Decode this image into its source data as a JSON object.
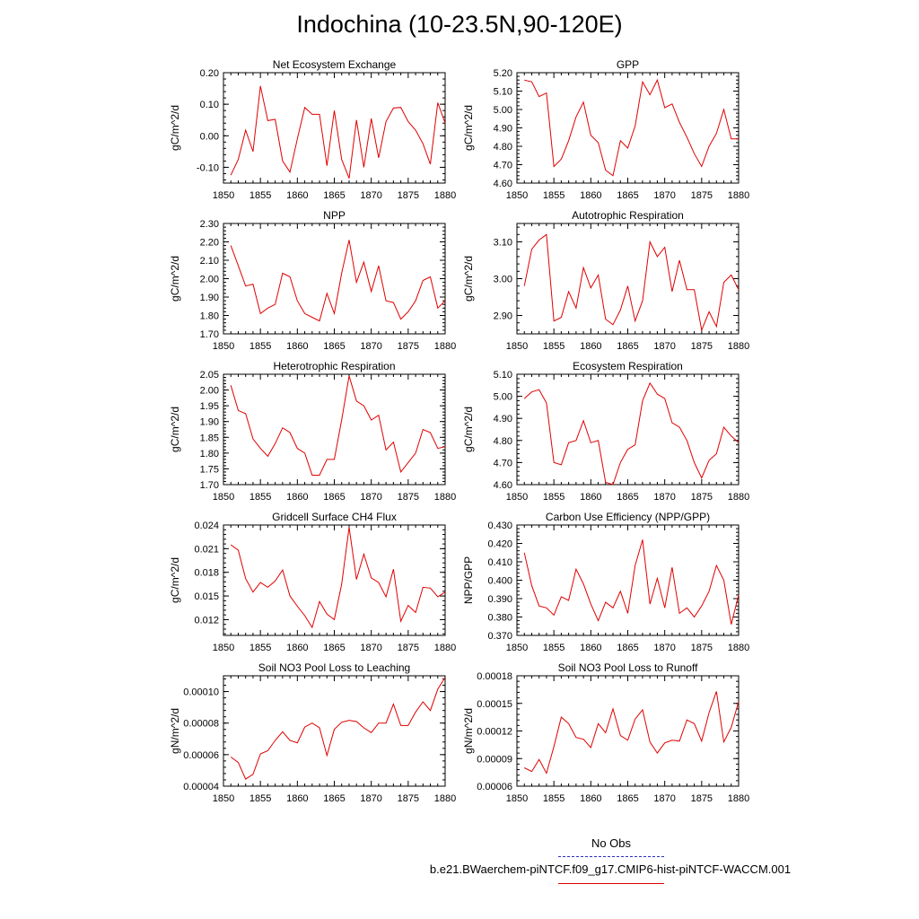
{
  "title": "Indochina (10-23.5N,90-120E)",
  "legend": {
    "obs_label": "No Obs",
    "obs_color": "#2c2cc0",
    "run_label": "b.e21.BWaerchem-piNTCF.f09_g17.CMIP6-hist-piNTCF-WACCM.001",
    "run_color": "#e00000"
  },
  "chart_data": [
    {
      "type": "line",
      "title": "Net Ecosystem Exchange",
      "ylabel": "gC/m^2/d",
      "xlim": [
        1850,
        1880
      ],
      "ylim": [
        -0.15,
        0.2
      ],
      "yticks": [
        "0.20",
        "0.10",
        "0.00",
        "-0.10"
      ],
      "ytick_values": [
        0.2,
        0.1,
        0.0,
        -0.1
      ],
      "xticks": [
        "1850",
        "1855",
        "1860",
        "1865",
        "1870",
        "1875",
        "1880"
      ],
      "x": [
        1851,
        1852,
        1853,
        1854,
        1855,
        1856,
        1857,
        1858,
        1859,
        1860,
        1861,
        1862,
        1863,
        1864,
        1865,
        1866,
        1867,
        1868,
        1869,
        1870,
        1871,
        1872,
        1873,
        1874,
        1875,
        1876,
        1877,
        1878,
        1879,
        1880
      ],
      "values": [
        -0.125,
        -0.075,
        0.018,
        -0.05,
        0.158,
        0.048,
        0.052,
        -0.08,
        -0.115,
        -0.01,
        0.09,
        0.068,
        0.068,
        -0.095,
        0.08,
        -0.075,
        -0.135,
        0.05,
        -0.1,
        0.055,
        -0.07,
        0.045,
        0.088,
        0.09,
        0.045,
        0.018,
        -0.025,
        -0.09,
        0.105,
        0.04
      ]
    },
    {
      "type": "line",
      "title": "GPP",
      "ylabel": "gC/m^2/d",
      "xlim": [
        1850,
        1880
      ],
      "ylim": [
        4.6,
        5.2
      ],
      "yticks": [
        "5.20",
        "5.10",
        "5.00",
        "4.90",
        "4.80",
        "4.70",
        "4.60"
      ],
      "ytick_values": [
        5.2,
        5.1,
        5.0,
        4.9,
        4.8,
        4.7,
        4.6
      ],
      "xticks": [
        "1850",
        "1855",
        "1860",
        "1865",
        "1870",
        "1875",
        "1880"
      ],
      "x": [
        1851,
        1852,
        1853,
        1854,
        1855,
        1856,
        1857,
        1858,
        1859,
        1860,
        1861,
        1862,
        1863,
        1864,
        1865,
        1866,
        1867,
        1868,
        1869,
        1870,
        1871,
        1872,
        1873,
        1874,
        1875,
        1876,
        1877,
        1878,
        1879,
        1880
      ],
      "values": [
        5.16,
        5.15,
        5.07,
        5.09,
        4.69,
        4.73,
        4.83,
        4.96,
        5.04,
        4.86,
        4.82,
        4.67,
        4.64,
        4.83,
        4.79,
        4.91,
        5.15,
        5.08,
        5.16,
        5.01,
        5.03,
        4.93,
        4.85,
        4.76,
        4.69,
        4.8,
        4.87,
        5.0,
        4.84,
        4.84
      ]
    },
    {
      "type": "line",
      "title": "NPP",
      "ylabel": "gC/m^2/d",
      "xlim": [
        1850,
        1880
      ],
      "ylim": [
        1.7,
        2.3
      ],
      "yticks": [
        "2.30",
        "2.20",
        "2.10",
        "2.00",
        "1.90",
        "1.80",
        "1.70"
      ],
      "ytick_values": [
        2.3,
        2.2,
        2.1,
        2.0,
        1.9,
        1.8,
        1.7
      ],
      "xticks": [
        "1850",
        "1855",
        "1860",
        "1865",
        "1870",
        "1875",
        "1880"
      ],
      "x": [
        1851,
        1852,
        1853,
        1854,
        1855,
        1856,
        1857,
        1858,
        1859,
        1860,
        1861,
        1862,
        1863,
        1864,
        1865,
        1866,
        1867,
        1868,
        1869,
        1870,
        1871,
        1872,
        1873,
        1874,
        1875,
        1876,
        1877,
        1878,
        1879,
        1880
      ],
      "values": [
        2.18,
        2.07,
        1.96,
        1.97,
        1.81,
        1.84,
        1.86,
        2.03,
        2.01,
        1.88,
        1.81,
        1.79,
        1.77,
        1.92,
        1.81,
        2.03,
        2.21,
        1.98,
        2.09,
        1.93,
        2.07,
        1.88,
        1.87,
        1.78,
        1.82,
        1.88,
        1.99,
        2.01,
        1.84,
        1.88
      ]
    },
    {
      "type": "line",
      "title": "Autotrophic Respiration",
      "ylabel": "gC/m^2/d",
      "xlim": [
        1850,
        1880
      ],
      "ylim": [
        2.85,
        3.15
      ],
      "yticks": [
        "3.10",
        "3.00",
        "2.90"
      ],
      "ytick_values": [
        3.1,
        3.0,
        2.9
      ],
      "xticks": [
        "1850",
        "1855",
        "1860",
        "1865",
        "1870",
        "1875",
        "1880"
      ],
      "x": [
        1851,
        1852,
        1853,
        1854,
        1855,
        1856,
        1857,
        1858,
        1859,
        1860,
        1861,
        1862,
        1863,
        1864,
        1865,
        1866,
        1867,
        1868,
        1869,
        1870,
        1871,
        1872,
        1873,
        1874,
        1875,
        1876,
        1877,
        1878,
        1879,
        1880
      ],
      "values": [
        2.98,
        3.08,
        3.105,
        3.12,
        2.885,
        2.895,
        2.965,
        2.92,
        3.03,
        2.975,
        3.01,
        2.89,
        2.875,
        2.915,
        2.98,
        2.885,
        2.94,
        3.1,
        3.06,
        3.085,
        2.965,
        3.05,
        2.97,
        2.97,
        2.86,
        2.91,
        2.87,
        2.99,
        3.01,
        2.97
      ]
    },
    {
      "type": "line",
      "title": "Heterotrophic Respiration",
      "ylabel": "gC/m^2/d",
      "xlim": [
        1850,
        1880
      ],
      "ylim": [
        1.7,
        2.05
      ],
      "yticks": [
        "2.05",
        "2.00",
        "1.95",
        "1.90",
        "1.85",
        "1.80",
        "1.75",
        "1.70"
      ],
      "ytick_values": [
        2.05,
        2.0,
        1.95,
        1.9,
        1.85,
        1.8,
        1.75,
        1.7
      ],
      "xticks": [
        "1850",
        "1855",
        "1860",
        "1865",
        "1870",
        "1875",
        "1880"
      ],
      "x": [
        1851,
        1852,
        1853,
        1854,
        1855,
        1856,
        1857,
        1858,
        1859,
        1860,
        1861,
        1862,
        1863,
        1864,
        1865,
        1866,
        1867,
        1868,
        1869,
        1870,
        1871,
        1872,
        1873,
        1874,
        1875,
        1876,
        1877,
        1878,
        1879,
        1880
      ],
      "values": [
        2.015,
        1.935,
        1.925,
        1.845,
        1.815,
        1.79,
        1.83,
        1.88,
        1.865,
        1.815,
        1.8,
        1.73,
        1.73,
        1.78,
        1.78,
        1.905,
        2.045,
        1.965,
        1.95,
        1.905,
        1.92,
        1.81,
        1.835,
        1.74,
        1.77,
        1.8,
        1.875,
        1.865,
        1.815,
        1.82
      ]
    },
    {
      "type": "line",
      "title": "Ecosystem Respiration",
      "ylabel": "gC/m^2/d",
      "xlim": [
        1850,
        1880
      ],
      "ylim": [
        4.6,
        5.1
      ],
      "yticks": [
        "5.10",
        "5.00",
        "4.90",
        "4.80",
        "4.70",
        "4.60"
      ],
      "ytick_values": [
        5.1,
        5.0,
        4.9,
        4.8,
        4.7,
        4.6
      ],
      "xticks": [
        "1850",
        "1855",
        "1860",
        "1865",
        "1870",
        "1875",
        "1880"
      ],
      "x": [
        1851,
        1852,
        1853,
        1854,
        1855,
        1856,
        1857,
        1858,
        1859,
        1860,
        1861,
        1862,
        1863,
        1864,
        1865,
        1866,
        1867,
        1868,
        1869,
        1870,
        1871,
        1872,
        1873,
        1874,
        1875,
        1876,
        1877,
        1878,
        1879,
        1880
      ],
      "values": [
        4.99,
        5.02,
        5.03,
        4.97,
        4.7,
        4.69,
        4.79,
        4.8,
        4.89,
        4.79,
        4.8,
        4.61,
        4.6,
        4.7,
        4.76,
        4.78,
        4.98,
        5.06,
        5.01,
        4.99,
        4.88,
        4.86,
        4.8,
        4.7,
        4.63,
        4.71,
        4.74,
        4.86,
        4.82,
        4.79
      ]
    },
    {
      "type": "line",
      "title": "Gridcell Surface CH4 Flux",
      "ylabel": "gC/m^2/d",
      "xlim": [
        1850,
        1880
      ],
      "ylim": [
        0.01,
        0.024
      ],
      "yticks": [
        "0.024",
        "0.021",
        "0.018",
        "0.015",
        "0.012"
      ],
      "ytick_values": [
        0.024,
        0.021,
        0.018,
        0.015,
        0.012
      ],
      "xticks": [
        "1850",
        "1855",
        "1860",
        "1865",
        "1870",
        "1875",
        "1880"
      ],
      "x": [
        1851,
        1852,
        1853,
        1854,
        1855,
        1856,
        1857,
        1858,
        1859,
        1860,
        1861,
        1862,
        1863,
        1864,
        1865,
        1866,
        1867,
        1868,
        1869,
        1870,
        1871,
        1872,
        1873,
        1874,
        1875,
        1876,
        1877,
        1878,
        1879,
        1880
      ],
      "values": [
        0.0215,
        0.0208,
        0.0172,
        0.0155,
        0.0167,
        0.0161,
        0.0169,
        0.0183,
        0.015,
        0.0137,
        0.0125,
        0.011,
        0.0143,
        0.0127,
        0.012,
        0.0165,
        0.0237,
        0.0171,
        0.0203,
        0.0173,
        0.0167,
        0.0149,
        0.0184,
        0.0118,
        0.0138,
        0.0129,
        0.0161,
        0.016,
        0.0149,
        0.0155
      ]
    },
    {
      "type": "line",
      "title": "Carbon Use Efficiency (NPP/GPP)",
      "ylabel": "NPP/GPP",
      "xlim": [
        1850,
        1880
      ],
      "ylim": [
        0.37,
        0.43
      ],
      "yticks": [
        "0.430",
        "0.420",
        "0.410",
        "0.400",
        "0.390",
        "0.380",
        "0.370"
      ],
      "ytick_values": [
        0.43,
        0.42,
        0.41,
        0.4,
        0.39,
        0.38,
        0.37
      ],
      "xticks": [
        "1850",
        "1855",
        "1860",
        "1865",
        "1870",
        "1875",
        "1880"
      ],
      "x": [
        1851,
        1852,
        1853,
        1854,
        1855,
        1856,
        1857,
        1858,
        1859,
        1860,
        1861,
        1862,
        1863,
        1864,
        1865,
        1866,
        1867,
        1868,
        1869,
        1870,
        1871,
        1872,
        1873,
        1874,
        1875,
        1876,
        1877,
        1878,
        1879,
        1880
      ],
      "values": [
        0.415,
        0.397,
        0.386,
        0.385,
        0.381,
        0.391,
        0.389,
        0.406,
        0.398,
        0.387,
        0.378,
        0.388,
        0.385,
        0.394,
        0.382,
        0.408,
        0.422,
        0.387,
        0.401,
        0.385,
        0.407,
        0.382,
        0.385,
        0.38,
        0.386,
        0.394,
        0.408,
        0.4,
        0.376,
        0.392
      ]
    },
    {
      "type": "line",
      "title": "Soil NO3 Pool Loss to Leaching",
      "ylabel": "gN/m^2/d",
      "xlim": [
        1850,
        1880
      ],
      "ylim": [
        4e-05,
        0.00011
      ],
      "yticks": [
        "0.00010",
        "0.00008",
        "0.00006",
        "0.00004"
      ],
      "ytick_values": [
        0.0001,
        8e-05,
        6e-05,
        4e-05
      ],
      "xticks": [
        "1850",
        "1855",
        "1860",
        "1865",
        "1870",
        "1875",
        "1880"
      ],
      "x": [
        1851,
        1852,
        1853,
        1854,
        1855,
        1856,
        1857,
        1858,
        1859,
        1860,
        1861,
        1862,
        1863,
        1864,
        1865,
        1866,
        1867,
        1868,
        1869,
        1870,
        1871,
        1872,
        1873,
        1874,
        1875,
        1876,
        1877,
        1878,
        1879,
        1880
      ],
      "values": [
        5.85e-05,
        5.5e-05,
        4.45e-05,
        4.75e-05,
        6.05e-05,
        6.25e-05,
        6.9e-05,
        7.45e-05,
        6.9e-05,
        6.75e-05,
        7.75e-05,
        8e-05,
        7.7e-05,
        5.95e-05,
        7.6e-05,
        8.05e-05,
        8.18e-05,
        8.1e-05,
        7.7e-05,
        7.4e-05,
        8e-05,
        8e-05,
        9.2e-05,
        7.85e-05,
        7.85e-05,
        8.7e-05,
        9.35e-05,
        8.8e-05,
        0.0001015,
        0.000109
      ]
    },
    {
      "type": "line",
      "title": "Soil NO3 Pool Loss to Runoff",
      "ylabel": "gN/m^2/d",
      "xlim": [
        1850,
        1880
      ],
      "ylim": [
        6e-05,
        0.00018
      ],
      "yticks": [
        "0.00018",
        "0.00015",
        "0.00012",
        "0.00009",
        "0.00006"
      ],
      "ytick_values": [
        0.00018,
        0.00015,
        0.00012,
        9e-05,
        6e-05
      ],
      "xticks": [
        "1850",
        "1855",
        "1860",
        "1865",
        "1870",
        "1875",
        "1880"
      ],
      "x": [
        1851,
        1852,
        1853,
        1854,
        1855,
        1856,
        1857,
        1858,
        1859,
        1860,
        1861,
        1862,
        1863,
        1864,
        1865,
        1866,
        1867,
        1868,
        1869,
        1870,
        1871,
        1872,
        1873,
        1874,
        1875,
        1876,
        1877,
        1878,
        1879,
        1880
      ],
      "values": [
        8e-05,
        7.6e-05,
        8.9e-05,
        7.4e-05,
        0.000103,
        0.000135,
        0.000128,
        0.000113,
        0.000111,
        0.000102,
        0.000128,
        0.000118,
        0.000144,
        0.000115,
        0.00011,
        0.000133,
        0.000143,
        0.000108,
        9.6e-05,
        0.000107,
        0.00011,
        0.000109,
        0.000132,
        0.000128,
        0.000109,
        0.00014,
        0.000163,
        0.000108,
        0.000124,
        0.000152
      ]
    }
  ]
}
